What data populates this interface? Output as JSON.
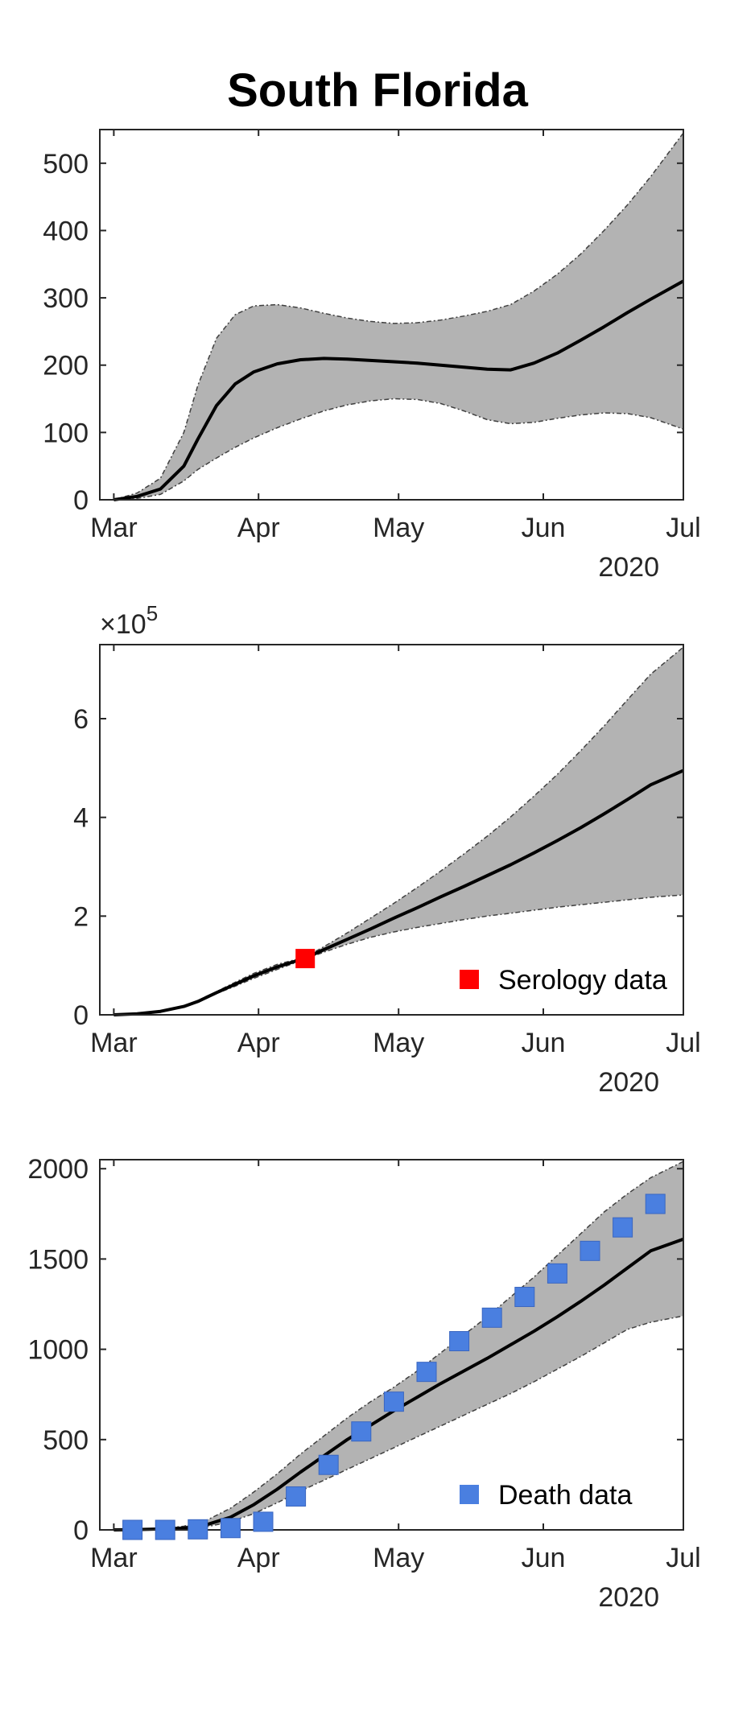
{
  "figure": {
    "title": "South Florida",
    "colors": {
      "band_fill": "#b3b3b3",
      "band_edge": "#404040",
      "line": "#000000",
      "serology_marker": "#ff0000",
      "death_marker": "#4a7fe0",
      "axis": "#262626"
    }
  },
  "chart_data": [
    {
      "type": "line",
      "x_ticks": [
        "Mar",
        "Apr",
        "May",
        "Jun",
        "Jul"
      ],
      "x_tick_days": [
        0,
        31,
        61,
        92,
        122
      ],
      "year_label": "2020",
      "xlim_days": [
        -3,
        122
      ],
      "ylim": [
        0,
        550
      ],
      "y_ticks": [
        0,
        100,
        200,
        300,
        400,
        500
      ],
      "y_tick_labels": [
        "0",
        "100",
        "200",
        "300",
        "400",
        "500"
      ],
      "exponent_label": "",
      "series": [
        {
          "role": "median",
          "x": [
            0,
            5,
            10,
            15,
            18,
            22,
            26,
            30,
            35,
            40,
            45,
            50,
            55,
            60,
            65,
            70,
            75,
            80,
            85,
            86,
            90,
            95,
            100,
            105,
            110,
            115,
            122
          ],
          "y": [
            0,
            5,
            16,
            50,
            90,
            140,
            172,
            190,
            202,
            208,
            210,
            209,
            207,
            205,
            203,
            200,
            197,
            194,
            193,
            195,
            203,
            218,
            237,
            257,
            278,
            298,
            325
          ]
        },
        {
          "role": "upper",
          "x": [
            0,
            5,
            10,
            15,
            18,
            22,
            26,
            30,
            35,
            40,
            45,
            50,
            55,
            60,
            65,
            70,
            75,
            80,
            85,
            90,
            95,
            100,
            105,
            110,
            115,
            122
          ],
          "y": [
            0,
            10,
            32,
            100,
            170,
            240,
            275,
            288,
            290,
            285,
            277,
            270,
            265,
            262,
            263,
            267,
            273,
            280,
            290,
            310,
            335,
            365,
            400,
            438,
            480,
            545
          ]
        },
        {
          "role": "lower",
          "x": [
            0,
            5,
            10,
            15,
            18,
            22,
            26,
            30,
            35,
            40,
            45,
            50,
            55,
            60,
            65,
            70,
            75,
            80,
            85,
            90,
            95,
            100,
            105,
            110,
            115,
            122
          ],
          "y": [
            0,
            2,
            8,
            28,
            45,
            62,
            78,
            92,
            107,
            120,
            132,
            141,
            147,
            150,
            149,
            143,
            132,
            119,
            113,
            115,
            121,
            126,
            129,
            128,
            122,
            105
          ]
        }
      ],
      "markers": null
    },
    {
      "type": "line",
      "x_ticks": [
        "Mar",
        "Apr",
        "May",
        "Jun",
        "Jul"
      ],
      "x_tick_days": [
        0,
        31,
        61,
        92,
        122
      ],
      "year_label": "2020",
      "xlim_days": [
        -3,
        122
      ],
      "ylim": [
        0,
        7.5
      ],
      "y_ticks": [
        0,
        2,
        4,
        6
      ],
      "y_tick_labels": [
        "0",
        "2",
        "4",
        "6"
      ],
      "exponent_label": "×10",
      "exponent_power": "5",
      "series": [
        {
          "role": "median",
          "x": [
            0,
            5,
            10,
            15,
            18,
            22,
            26,
            30,
            35,
            41,
            45,
            50,
            55,
            60,
            65,
            70,
            75,
            80,
            85,
            90,
            95,
            100,
            105,
            110,
            115,
            122
          ],
          "y": [
            0,
            0.02,
            0.07,
            0.17,
            0.27,
            0.45,
            0.62,
            0.79,
            0.97,
            1.15,
            1.32,
            1.53,
            1.74,
            1.96,
            2.17,
            2.39,
            2.6,
            2.82,
            3.04,
            3.28,
            3.53,
            3.79,
            4.07,
            4.36,
            4.66,
            4.95
          ]
        },
        {
          "role": "upper",
          "x": [
            0,
            5,
            10,
            15,
            18,
            22,
            26,
            30,
            35,
            41,
            45,
            50,
            55,
            60,
            65,
            70,
            75,
            80,
            85,
            90,
            95,
            100,
            105,
            110,
            115,
            122
          ],
          "y": [
            0,
            0.02,
            0.07,
            0.17,
            0.28,
            0.47,
            0.66,
            0.84,
            1.02,
            1.17,
            1.38,
            1.66,
            1.96,
            2.26,
            2.58,
            2.91,
            3.26,
            3.62,
            4.01,
            4.43,
            4.87,
            5.35,
            5.85,
            6.38,
            6.9,
            7.45
          ]
        },
        {
          "role": "lower",
          "x": [
            0,
            5,
            10,
            15,
            18,
            22,
            26,
            30,
            35,
            41,
            45,
            50,
            55,
            60,
            65,
            70,
            75,
            80,
            85,
            90,
            95,
            100,
            105,
            110,
            115,
            122
          ],
          "y": [
            0,
            0.02,
            0.07,
            0.17,
            0.26,
            0.43,
            0.58,
            0.74,
            0.92,
            1.13,
            1.27,
            1.43,
            1.57,
            1.68,
            1.77,
            1.85,
            1.93,
            2.0,
            2.06,
            2.12,
            2.18,
            2.23,
            2.28,
            2.33,
            2.38,
            2.43
          ]
        }
      ],
      "markers": {
        "name": "Serology data",
        "x": [
          41
        ],
        "y": [
          1.14
        ]
      }
    },
    {
      "type": "line",
      "x_ticks": [
        "Mar",
        "Apr",
        "May",
        "Jun",
        "Jul"
      ],
      "x_tick_days": [
        0,
        31,
        61,
        92,
        122
      ],
      "year_label": "2020",
      "xlim_days": [
        -3,
        122
      ],
      "ylim": [
        0,
        2050
      ],
      "y_ticks": [
        0,
        500,
        1000,
        1500,
        2000
      ],
      "y_tick_labels": [
        "0",
        "500",
        "1000",
        "1500",
        "2000"
      ],
      "exponent_label": "",
      "series": [
        {
          "role": "median",
          "x": [
            0,
            5,
            10,
            15,
            20,
            25,
            30,
            35,
            40,
            45,
            50,
            55,
            60,
            65,
            70,
            75,
            80,
            85,
            90,
            95,
            100,
            105,
            110,
            115,
            122
          ],
          "y": [
            0,
            2,
            5,
            10,
            30,
            70,
            140,
            225,
            320,
            410,
            500,
            580,
            660,
            735,
            810,
            880,
            950,
            1025,
            1100,
            1180,
            1265,
            1355,
            1450,
            1545,
            1610
          ]
        },
        {
          "role": "upper",
          "x": [
            0,
            5,
            10,
            15,
            20,
            25,
            30,
            35,
            40,
            45,
            50,
            55,
            60,
            65,
            70,
            75,
            80,
            85,
            90,
            95,
            100,
            105,
            110,
            115,
            122
          ],
          "y": [
            0,
            3,
            8,
            20,
            55,
            120,
            210,
            310,
            420,
            520,
            620,
            710,
            790,
            880,
            980,
            1080,
            1180,
            1290,
            1400,
            1520,
            1640,
            1760,
            1860,
            1950,
            2040
          ]
        },
        {
          "role": "lower",
          "x": [
            0,
            5,
            10,
            15,
            20,
            25,
            30,
            35,
            40,
            45,
            50,
            55,
            60,
            65,
            70,
            75,
            80,
            85,
            90,
            95,
            100,
            105,
            110,
            115,
            122
          ],
          "y": [
            0,
            1,
            3,
            6,
            18,
            45,
            90,
            150,
            215,
            275,
            335,
            395,
            455,
            515,
            575,
            635,
            695,
            755,
            820,
            890,
            960,
            1035,
            1110,
            1150,
            1185
          ]
        }
      ],
      "markers": {
        "name": "Death data",
        "x": [
          4,
          11,
          18,
          25,
          32,
          39,
          46,
          53,
          60,
          67,
          74,
          81,
          88,
          95,
          102,
          109,
          116
        ],
        "y": [
          0,
          0,
          3,
          10,
          45,
          185,
          360,
          545,
          710,
          875,
          1045,
          1175,
          1290,
          1420,
          1545,
          1675,
          1805
        ]
      }
    }
  ]
}
